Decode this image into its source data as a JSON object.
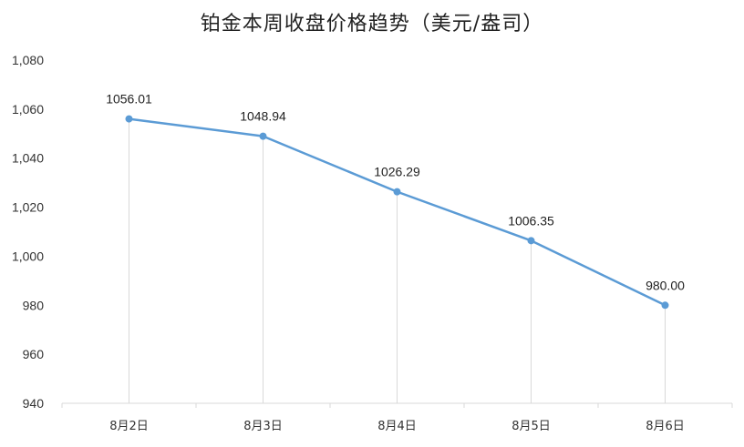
{
  "chart_data": {
    "type": "line",
    "title": "铂金本周收盘价格趋势（美元/盎司）",
    "xlabel": "",
    "ylabel": "",
    "categories": [
      "8月2日",
      "8月3日",
      "8月4日",
      "8月5日",
      "8月6日"
    ],
    "series": [
      {
        "values": [
          1056.01,
          1048.94,
          1026.29,
          1006.35,
          980.0
        ],
        "data_labels": [
          "1056.01",
          "1048.94",
          "1026.29",
          "1006.35",
          "980.00"
        ],
        "color": "#5B9BD5"
      }
    ],
    "ylim": [
      940,
      1080
    ],
    "yticks": [
      940,
      960,
      980,
      1000,
      1020,
      1040,
      1060,
      1080
    ],
    "ytick_labels": [
      "940",
      "960",
      "980",
      "1,000",
      "1,020",
      "1,040",
      "1,060",
      "1,080"
    ],
    "grid": false,
    "drop_lines": true,
    "legend": "none"
  }
}
